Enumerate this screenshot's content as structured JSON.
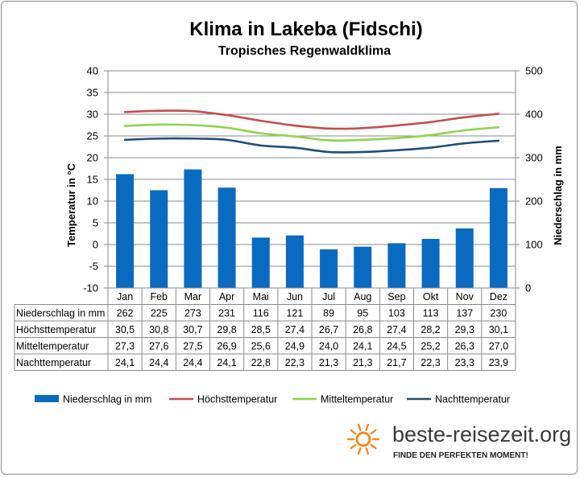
{
  "chart_data": {
    "type": "bar",
    "title": "Klima in Lakeba (Fidschi)",
    "subtitle": "Tropisches Regenwaldklima",
    "ylabel": "Temperatur in °C",
    "y2label": "Niederschlag in mm",
    "ylim": [
      -10,
      40
    ],
    "y2lim": [
      0,
      500
    ],
    "yticks": [
      -10,
      -5,
      0,
      5,
      10,
      15,
      20,
      25,
      30,
      35,
      40
    ],
    "y2ticks": [
      0,
      100,
      200,
      300,
      400,
      500
    ],
    "grid": true,
    "legend_position": "bottom",
    "categories": [
      "Jan",
      "Feb",
      "Mar",
      "Apr",
      "Mai",
      "Jun",
      "Jul",
      "Aug",
      "Sep",
      "Okt",
      "Nov",
      "Dez"
    ],
    "series": [
      {
        "name": "Niederschlag in mm",
        "type": "bar",
        "axis": "right",
        "color": "#0a6ac0",
        "values": [
          262,
          225,
          273,
          231,
          116,
          121,
          89,
          95,
          103,
          113,
          137,
          230
        ],
        "labels": [
          "262",
          "225",
          "273",
          "231",
          "116",
          "121",
          "89",
          "95",
          "103",
          "113",
          "137",
          "230"
        ]
      },
      {
        "name": "Höchsttemperatur",
        "type": "line",
        "axis": "left",
        "color": "#c0504d",
        "values": [
          30.5,
          30.8,
          30.7,
          29.8,
          28.5,
          27.4,
          26.7,
          26.8,
          27.4,
          28.2,
          29.3,
          30.1
        ],
        "labels": [
          "30,5",
          "30,8",
          "30,7",
          "29,8",
          "28,5",
          "27,4",
          "26,7",
          "26,8",
          "27,4",
          "28,2",
          "29,3",
          "30,1"
        ]
      },
      {
        "name": "Mitteltemperatur",
        "type": "line",
        "axis": "left",
        "color": "#8ed44a",
        "values": [
          27.3,
          27.6,
          27.5,
          26.9,
          25.6,
          24.9,
          24.0,
          24.1,
          24.5,
          25.2,
          26.3,
          27.0
        ],
        "labels": [
          "27,3",
          "27,6",
          "27,5",
          "26,9",
          "25,6",
          "24,9",
          "24,0",
          "24,1",
          "24,5",
          "25,2",
          "26,3",
          "27,0"
        ]
      },
      {
        "name": "Nachttemperatur",
        "type": "line",
        "axis": "left",
        "color": "#1f4e79",
        "values": [
          24.1,
          24.4,
          24.4,
          24.1,
          22.8,
          22.3,
          21.3,
          21.3,
          21.7,
          22.3,
          23.3,
          23.9
        ],
        "labels": [
          "24,1",
          "24,4",
          "24,4",
          "24,1",
          "22,8",
          "22,3",
          "21,3",
          "21,3",
          "21,7",
          "22,3",
          "23,3",
          "23,9"
        ]
      }
    ]
  },
  "branding": {
    "site": "beste-reisezeit.org",
    "tagline": "FINDE DEN PERFEKTEN MOMENT!",
    "logo_icon": "sun-icon",
    "logo_color": "#f08a24"
  }
}
